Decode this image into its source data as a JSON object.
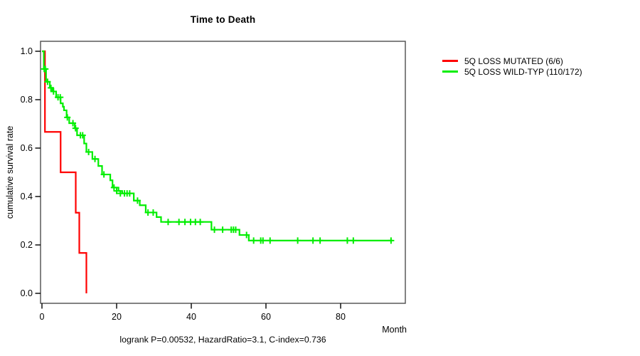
{
  "chart_data": {
    "type": "line",
    "subtype": "kaplan-meier-step",
    "title": "Time to Death",
    "xlabel": "Month",
    "ylabel": "cumulative survival rate",
    "footnote": "logrank P=0.00532, HazardRatio=3.1, C-index=0.736",
    "xlim": [
      0,
      97
    ],
    "ylim": [
      0.0,
      1.0
    ],
    "xticks": [
      0,
      20,
      40,
      60,
      80
    ],
    "yticks": [
      "0.0",
      "0.2",
      "0.4",
      "0.6",
      "0.8",
      "1.0"
    ],
    "grid": false,
    "legend_position": "right-outside",
    "frame_color": "#4d4d4d",
    "tick_color": "#000000",
    "series": [
      {
        "name": "5Q LOSS MUTATED (6/6)",
        "color": "#ff0000",
        "points": [
          [
            0,
            1.0
          ],
          [
            0.8,
            0.667
          ],
          [
            5.0,
            0.5
          ],
          [
            9.05,
            0.333
          ],
          [
            10.0,
            0.167
          ],
          [
            11.9,
            0.0
          ]
        ],
        "end": 11.9,
        "censors": []
      },
      {
        "name": "5Q LOSS WILD-TYP (110/172)",
        "color": "#00ee00",
        "points": [
          [
            0,
            1.0
          ],
          [
            0.5,
            0.927
          ],
          [
            1.1,
            0.874
          ],
          [
            2.1,
            0.849
          ],
          [
            2.8,
            0.834
          ],
          [
            3.8,
            0.81
          ],
          [
            5.0,
            0.785
          ],
          [
            5.6,
            0.771
          ],
          [
            5.9,
            0.756
          ],
          [
            6.6,
            0.727
          ],
          [
            7.3,
            0.703
          ],
          [
            8.8,
            0.682
          ],
          [
            9.4,
            0.653
          ],
          [
            11.3,
            0.619
          ],
          [
            11.9,
            0.584
          ],
          [
            13.5,
            0.555
          ],
          [
            15.1,
            0.526
          ],
          [
            16.1,
            0.491
          ],
          [
            18.3,
            0.467
          ],
          [
            18.9,
            0.437
          ],
          [
            20.5,
            0.423
          ],
          [
            21.5,
            0.413
          ],
          [
            24.6,
            0.383
          ],
          [
            26.2,
            0.364
          ],
          [
            27.8,
            0.334
          ],
          [
            30.7,
            0.315
          ],
          [
            31.9,
            0.295
          ],
          [
            45.4,
            0.263
          ],
          [
            52.9,
            0.241
          ],
          [
            55.4,
            0.218
          ]
        ],
        "end": 93.9,
        "censors": [
          [
            0.6,
            0.927
          ],
          [
            0.9,
            0.927
          ],
          [
            1.5,
            0.874
          ],
          [
            2.4,
            0.849
          ],
          [
            3.1,
            0.834
          ],
          [
            4.3,
            0.81
          ],
          [
            4.9,
            0.81
          ],
          [
            6.8,
            0.727
          ],
          [
            8.3,
            0.703
          ],
          [
            9.0,
            0.682
          ],
          [
            10.3,
            0.653
          ],
          [
            10.9,
            0.653
          ],
          [
            12.5,
            0.584
          ],
          [
            14.2,
            0.555
          ],
          [
            16.6,
            0.491
          ],
          [
            19.3,
            0.437
          ],
          [
            20.0,
            0.423
          ],
          [
            21.0,
            0.413
          ],
          [
            22.1,
            0.413
          ],
          [
            22.8,
            0.413
          ],
          [
            23.5,
            0.413
          ],
          [
            25.6,
            0.383
          ],
          [
            28.4,
            0.334
          ],
          [
            29.8,
            0.334
          ],
          [
            33.8,
            0.295
          ],
          [
            36.7,
            0.295
          ],
          [
            38.3,
            0.295
          ],
          [
            39.8,
            0.295
          ],
          [
            41.1,
            0.295
          ],
          [
            42.4,
            0.295
          ],
          [
            46.2,
            0.263
          ],
          [
            48.4,
            0.263
          ],
          [
            50.7,
            0.263
          ],
          [
            51.3,
            0.263
          ],
          [
            51.9,
            0.263
          ],
          [
            54.8,
            0.241
          ],
          [
            56.7,
            0.218
          ],
          [
            58.6,
            0.218
          ],
          [
            59.2,
            0.218
          ],
          [
            61.1,
            0.218
          ],
          [
            68.5,
            0.218
          ],
          [
            72.6,
            0.218
          ],
          [
            74.5,
            0.218
          ],
          [
            81.8,
            0.218
          ],
          [
            83.4,
            0.218
          ],
          [
            93.5,
            0.218
          ]
        ]
      }
    ]
  }
}
